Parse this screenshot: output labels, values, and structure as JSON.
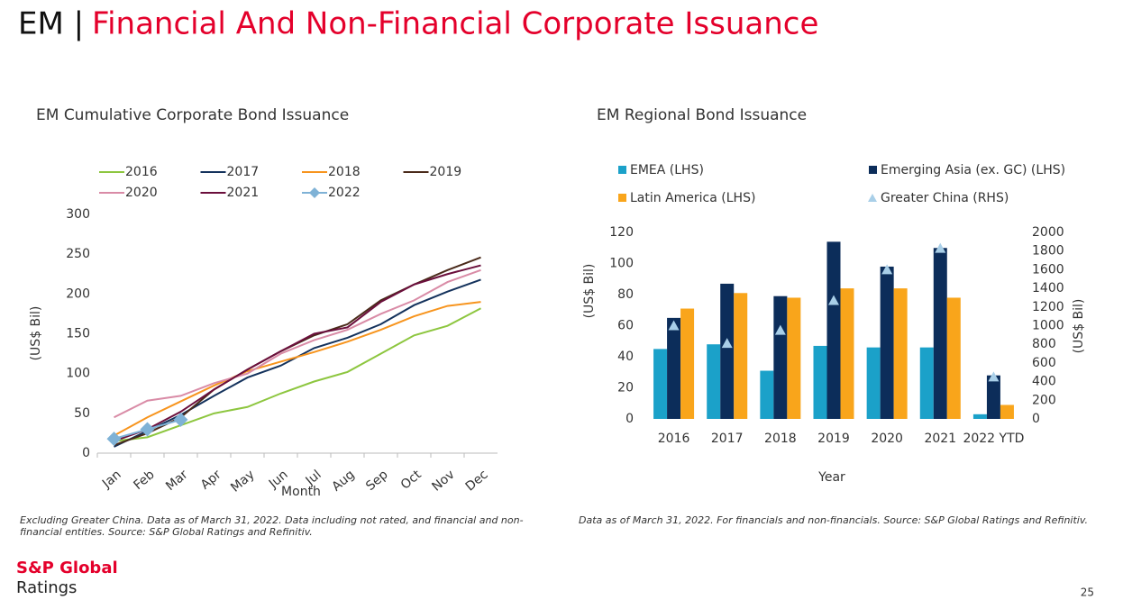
{
  "header": {
    "prefix": "EM |",
    "title": "Financial And Non-Financial Corporate Issuance"
  },
  "chart_data": [
    {
      "type": "line",
      "title": "EM Cumulative Corporate Bond Issuance",
      "y_label": "(US$ Bil)",
      "x_label": "Month",
      "categories": [
        "Jan",
        "Feb",
        "Mar",
        "Apr",
        "May",
        "Jun",
        "Jul",
        "Aug",
        "Sep",
        "Oct",
        "Nov",
        "Dec"
      ],
      "ylim": [
        0,
        300
      ],
      "yticks": [
        0,
        50,
        100,
        150,
        200,
        250,
        300
      ],
      "series": [
        {
          "name": "2016",
          "color": "#8dc63f",
          "values": [
            15,
            20,
            35,
            50,
            58,
            75,
            90,
            102,
            125,
            148,
            160,
            182
          ]
        },
        {
          "name": "2017",
          "color": "#14325c",
          "values": [
            8,
            28,
            48,
            72,
            95,
            110,
            132,
            145,
            162,
            186,
            203,
            218
          ]
        },
        {
          "name": "2018",
          "color": "#f7941d",
          "values": [
            22,
            45,
            65,
            85,
            103,
            115,
            127,
            140,
            155,
            172,
            185,
            190
          ]
        },
        {
          "name": "2019",
          "color": "#4a2a1a",
          "values": [
            10,
            25,
            45,
            80,
            105,
            128,
            148,
            162,
            192,
            212,
            230,
            246
          ]
        },
        {
          "name": "2020",
          "color": "#d98ba6",
          "values": [
            45,
            66,
            72,
            88,
            100,
            125,
            142,
            155,
            175,
            192,
            215,
            230
          ]
        },
        {
          "name": "2021",
          "color": "#6b0f3c",
          "values": [
            15,
            30,
            52,
            80,
            105,
            128,
            150,
            158,
            190,
            212,
            225,
            236
          ]
        },
        {
          "name": "2022",
          "color": "#7fb2d6",
          "marker": "diamond",
          "values": [
            18,
            30,
            42,
            null,
            null,
            null,
            null,
            null,
            null,
            null,
            null,
            null
          ]
        }
      ]
    },
    {
      "type": "bar",
      "title": "EM Regional Bond Issuance",
      "y_label": "(US$ Bil)",
      "y2_label": "(US$ Bil)",
      "x_label": "Year",
      "categories": [
        "2016",
        "2017",
        "2018",
        "2019",
        "2020",
        "2021",
        "2022 YTD"
      ],
      "ylim": [
        0,
        120
      ],
      "yticks": [
        0,
        20,
        40,
        60,
        80,
        100,
        120
      ],
      "y2lim": [
        0,
        2000
      ],
      "y2ticks": [
        0,
        200,
        400,
        600,
        800,
        1000,
        1200,
        1400,
        1600,
        1800,
        2000
      ],
      "series": [
        {
          "name": "EMEA (LHS)",
          "color": "#1ba1c9",
          "values": [
            45,
            48,
            31,
            47,
            46,
            46,
            3
          ]
        },
        {
          "name": "Emerging Asia (ex. GC) (LHS)",
          "color": "#0c2d5a",
          "values": [
            65,
            87,
            79,
            114,
            98,
            110,
            28
          ]
        },
        {
          "name": "Latin America (LHS)",
          "color": "#f9a51b",
          "values": [
            71,
            81,
            78,
            84,
            84,
            78,
            9
          ]
        },
        {
          "name": "Greater China (RHS)",
          "color": "#a9cfe8",
          "axis": "y2",
          "marker": "triangle",
          "values": [
            1000,
            810,
            950,
            1270,
            1600,
            1830,
            450
          ]
        }
      ]
    }
  ],
  "footnotes": [
    "Excluding Greater China. Data as of March 31, 2022. Data including not rated, and financial and non-",
    "financial entities. Source: S&P Global Ratings and Refinitiv.",
    "Data as of March 31, 2022. For financials and non-financials. Source: S&P Global Ratings and Refinitiv."
  ],
  "logo": {
    "line1": "S&P Global",
    "line2": "Ratings"
  },
  "page_number": "25"
}
